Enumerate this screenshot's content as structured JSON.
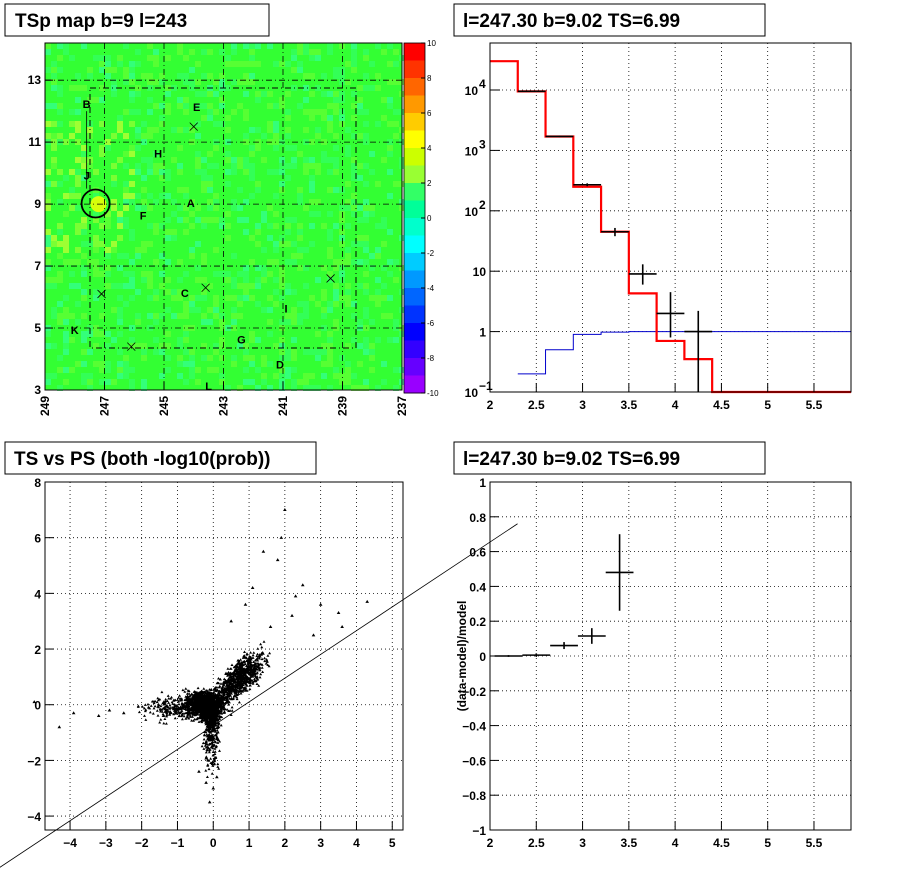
{
  "panels": [
    {
      "title": "TSp map b=9 l=243",
      "type": "heatmap",
      "x_ticks": [
        "249",
        "247",
        "245",
        "243",
        "241",
        "239",
        "237"
      ],
      "y_ticks": [
        "3",
        "5",
        "7",
        "9",
        "11",
        "13"
      ],
      "xlim": [
        249,
        237
      ],
      "ylim": [
        3,
        14.2
      ],
      "colorbar": {
        "range": [
          -10,
          10
        ],
        "ticks": [
          "10",
          "8",
          "6",
          "4",
          "2",
          "0",
          "-2",
          "-4",
          "-6",
          "-8",
          "-10"
        ]
      },
      "labels": [
        {
          "text": "B",
          "l": 247.6,
          "b": 12.1
        },
        {
          "text": "E",
          "l": 243.9,
          "b": 12.0
        },
        {
          "text": "H",
          "l": 245.2,
          "b": 10.5
        },
        {
          "text": "J",
          "l": 247.6,
          "b": 9.8
        },
        {
          "text": "A",
          "l": 244.1,
          "b": 8.9
        },
        {
          "text": "F",
          "l": 245.7,
          "b": 8.5
        },
        {
          "text": "C",
          "l": 244.3,
          "b": 6.0
        },
        {
          "text": "I",
          "l": 240.9,
          "b": 5.5
        },
        {
          "text": "K",
          "l": 248.0,
          "b": 4.8
        },
        {
          "text": "G",
          "l": 242.4,
          "b": 4.5
        },
        {
          "text": "D",
          "l": 241.1,
          "b": 3.7
        },
        {
          "text": "L",
          "l": 243.5,
          "b": 3.0
        }
      ],
      "crosses": [
        {
          "l": 244.0,
          "b": 11.5
        },
        {
          "l": 247.1,
          "b": 6.1
        },
        {
          "l": 243.6,
          "b": 6.3
        },
        {
          "l": 239.4,
          "b": 6.6
        },
        {
          "l": 246.1,
          "b": 4.4
        }
      ],
      "source_circle": {
        "l": 247.3,
        "b": 9.02
      }
    },
    {
      "title": "l=247.30 b=9.02 TS=6.99",
      "type": "step",
      "x_ticks": [
        "2",
        "2.5",
        "3",
        "3.5",
        "4",
        "4.5",
        "5",
        "5.5"
      ],
      "y_ticks": [
        {
          "base": "10",
          "exp": "−1"
        },
        {
          "base": "1",
          "exp": ""
        },
        {
          "base": "10",
          "exp": ""
        },
        {
          "base": "10",
          "exp": "2"
        },
        {
          "base": "10",
          "exp": "3"
        },
        {
          "base": "10",
          "exp": "4"
        }
      ],
      "xlim": [
        2,
        5.9
      ],
      "ylim": [
        0.1,
        60000
      ],
      "log_y": true,
      "model_total": {
        "color": "#ff0000",
        "edges": [
          2.0,
          2.3,
          2.6,
          2.9,
          3.2,
          3.5,
          3.8,
          4.1,
          4.4,
          5.9
        ],
        "values": [
          30000,
          9500,
          1700,
          250,
          45,
          4.3,
          0.7,
          0.35,
          0.1
        ]
      },
      "model_source": {
        "color": "#0000cc",
        "edges": [
          2.3,
          2.6,
          2.9,
          3.2,
          3.5,
          3.8,
          4.1,
          4.4,
          5.9
        ],
        "values": [
          0.2,
          0.5,
          0.9,
          0.98,
          1.0,
          1.0,
          1.0,
          1.0
        ]
      },
      "data_points": [
        {
          "x": 2.45,
          "y": 9500,
          "xerr": 0.15,
          "ylo": 9400,
          "yhi": 9600
        },
        {
          "x": 2.75,
          "y": 1700,
          "xerr": 0.15,
          "ylo": 1660,
          "yhi": 1740
        },
        {
          "x": 3.05,
          "y": 270,
          "xerr": 0.15,
          "ylo": 255,
          "yhi": 285
        },
        {
          "x": 3.35,
          "y": 45,
          "xerr": 0.15,
          "ylo": 38,
          "yhi": 52
        },
        {
          "x": 3.65,
          "y": 9,
          "xerr": 0.15,
          "ylo": 6,
          "yhi": 13
        },
        {
          "x": 3.95,
          "y": 2,
          "xerr": 0.15,
          "ylo": 0.8,
          "yhi": 4.5
        },
        {
          "x": 4.25,
          "y": 1,
          "xerr": 0.15,
          "ylo": 0.1,
          "yhi": 2.2
        }
      ]
    },
    {
      "title": "TS vs PS (both -log10(prob))",
      "type": "scatter",
      "x_ticks": [
        "−4",
        "−3",
        "−2",
        "−1",
        "0",
        "1",
        "2",
        "3",
        "4",
        "5"
      ],
      "y_ticks": [
        "−4",
        "−2",
        "0",
        "2",
        "4",
        "6",
        "8"
      ],
      "xlim": [
        -4.7,
        5.3
      ],
      "ylim": [
        -4.5,
        8
      ],
      "line": {
        "x1": -6.5,
        "y1": -6.3,
        "x2": 8.5,
        "y2": 6.5
      },
      "outliers": [
        [
          -5.0,
          0.1
        ],
        [
          -3.9,
          -0.3
        ],
        [
          -4.3,
          -0.8
        ],
        [
          -3.2,
          -0.4
        ],
        [
          -2.5,
          -0.3
        ],
        [
          -2.9,
          -0.2
        ],
        [
          1.9,
          6.0
        ],
        [
          2.0,
          7.0
        ],
        [
          1.4,
          5.5
        ],
        [
          1.8,
          5.2
        ],
        [
          2.5,
          4.3
        ],
        [
          3.0,
          3.6
        ],
        [
          3.5,
          3.3
        ],
        [
          3.6,
          2.8
        ],
        [
          4.3,
          3.7
        ],
        [
          2.3,
          3.9
        ],
        [
          1.1,
          4.2
        ],
        [
          0.9,
          3.6
        ],
        [
          -0.1,
          -3.5
        ],
        [
          0.0,
          -3.0
        ],
        [
          -0.4,
          -2.4
        ],
        [
          0.1,
          -2.6
        ],
        [
          1.6,
          2.8
        ],
        [
          2.2,
          3.2
        ],
        [
          -0.2,
          -2.8
        ],
        [
          0.5,
          3.0
        ],
        [
          2.8,
          2.5
        ]
      ]
    },
    {
      "title": "l=247.30 b=9.02 TS=6.99",
      "type": "errorbar",
      "ylabel": "(data-model)/model",
      "x_ticks": [
        "2",
        "2.5",
        "3",
        "3.5",
        "4",
        "4.5",
        "5",
        "5.5"
      ],
      "y_ticks": [
        "−1",
        "−0.8",
        "−0.6",
        "−0.4",
        "−0.2",
        "0",
        "0.2",
        "0.4",
        "0.6",
        "0.8",
        "1"
      ],
      "xlim": [
        2,
        5.9
      ],
      "ylim": [
        -1,
        1
      ],
      "points": [
        {
          "x": 2.2,
          "y": 0.0,
          "xerr": 0.15,
          "yerr": 0.005
        },
        {
          "x": 2.5,
          "y": 0.005,
          "xerr": 0.15,
          "yerr": 0.01
        },
        {
          "x": 2.8,
          "y": 0.06,
          "xerr": 0.15,
          "yerr": 0.02
        },
        {
          "x": 3.1,
          "y": 0.115,
          "xerr": 0.15,
          "yerr": 0.045
        },
        {
          "x": 3.4,
          "y": 0.48,
          "xerr": 0.15,
          "yerr": 0.22
        }
      ]
    }
  ]
}
